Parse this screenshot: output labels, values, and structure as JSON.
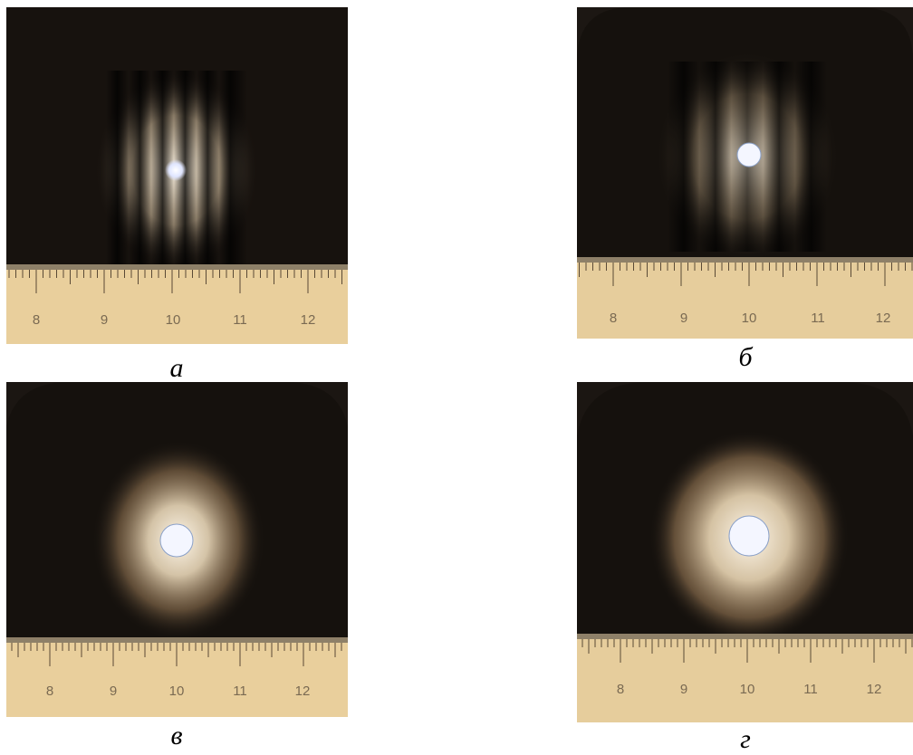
{
  "figure": {
    "panels": [
      {
        "caption": "а",
        "pattern": "fringes",
        "spot": "tiny",
        "ruler_ticks": [
          "8",
          "9",
          "10",
          "11",
          "12"
        ]
      },
      {
        "caption": "б",
        "pattern": "fringes",
        "spot": "small",
        "ruler_ticks": [
          "8",
          "9",
          "10",
          "11",
          "12"
        ]
      },
      {
        "caption": "в",
        "pattern": "halo",
        "spot": "medium",
        "ruler_ticks": [
          "8",
          "9",
          "10",
          "11",
          "12"
        ]
      },
      {
        "caption": "г",
        "pattern": "halo",
        "spot": "large",
        "ruler_ticks": [
          "8",
          "9",
          "10",
          "11",
          "12"
        ]
      }
    ],
    "colors": {
      "background": "#1a1511",
      "ruler": "#e9cf9c",
      "ruler_marks": "#5a4a36",
      "glow": "#f2e6cf",
      "spot": "#f4f6ff"
    }
  }
}
